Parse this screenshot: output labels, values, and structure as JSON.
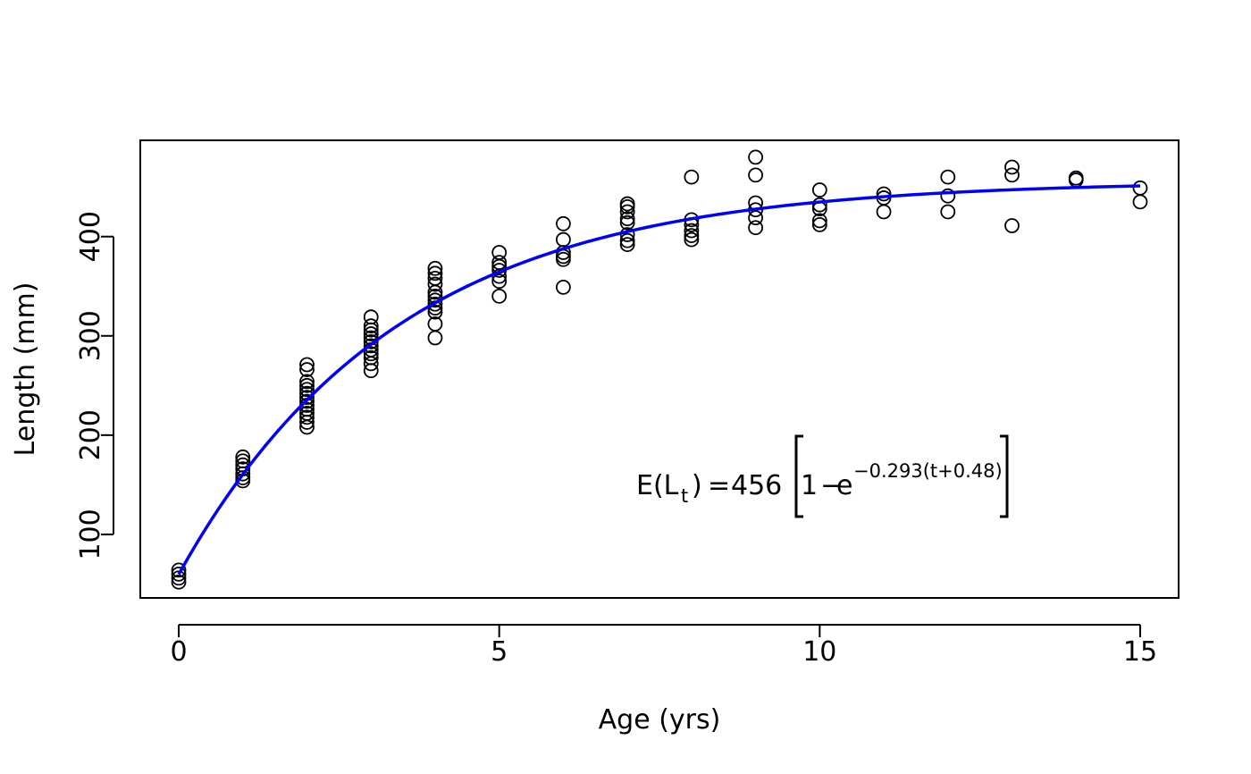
{
  "chart_data": {
    "type": "scatter",
    "title": "",
    "xlabel": "Age (yrs)",
    "ylabel": "Length (mm)",
    "xlim": [
      -0.6,
      15.6
    ],
    "ylim": [
      36,
      497
    ],
    "x_ticks": [
      0,
      5,
      10,
      15
    ],
    "y_ticks": [
      100,
      200,
      300,
      400
    ],
    "grid": false,
    "points_color": "#000000",
    "curve_color": "#0000ff",
    "points": [
      [
        0,
        52
      ],
      [
        0,
        56
      ],
      [
        0,
        60
      ],
      [
        0,
        64
      ],
      [
        1,
        154
      ],
      [
        1,
        157
      ],
      [
        1,
        161
      ],
      [
        1,
        166
      ],
      [
        1,
        170
      ],
      [
        1,
        174
      ],
      [
        1,
        178
      ],
      [
        2,
        208
      ],
      [
        2,
        213
      ],
      [
        2,
        218
      ],
      [
        2,
        222
      ],
      [
        2,
        226
      ],
      [
        2,
        230
      ],
      [
        2,
        234
      ],
      [
        2,
        238
      ],
      [
        2,
        242
      ],
      [
        2,
        246
      ],
      [
        2,
        250
      ],
      [
        2,
        254
      ],
      [
        2,
        266
      ],
      [
        2,
        271
      ],
      [
        3,
        265
      ],
      [
        3,
        272
      ],
      [
        3,
        278
      ],
      [
        3,
        282
      ],
      [
        3,
        286
      ],
      [
        3,
        290
      ],
      [
        3,
        294
      ],
      [
        3,
        298
      ],
      [
        3,
        302
      ],
      [
        3,
        306
      ],
      [
        3,
        310
      ],
      [
        3,
        319
      ],
      [
        4,
        298
      ],
      [
        4,
        312
      ],
      [
        4,
        324
      ],
      [
        4,
        328
      ],
      [
        4,
        332
      ],
      [
        4,
        336
      ],
      [
        4,
        340
      ],
      [
        4,
        344
      ],
      [
        4,
        352
      ],
      [
        4,
        358
      ],
      [
        4,
        363
      ],
      [
        4,
        368
      ],
      [
        5,
        340
      ],
      [
        5,
        355
      ],
      [
        5,
        360
      ],
      [
        5,
        366
      ],
      [
        5,
        370
      ],
      [
        5,
        374
      ],
      [
        5,
        384
      ],
      [
        6,
        349
      ],
      [
        6,
        377
      ],
      [
        6,
        380
      ],
      [
        6,
        384
      ],
      [
        6,
        397
      ],
      [
        6,
        413
      ],
      [
        7,
        392
      ],
      [
        7,
        396
      ],
      [
        7,
        402
      ],
      [
        7,
        414
      ],
      [
        7,
        418
      ],
      [
        7,
        425
      ],
      [
        7,
        430
      ],
      [
        7,
        433
      ],
      [
        8,
        397
      ],
      [
        8,
        401
      ],
      [
        8,
        406
      ],
      [
        8,
        412
      ],
      [
        8,
        417
      ],
      [
        8,
        460
      ],
      [
        9,
        409
      ],
      [
        9,
        419
      ],
      [
        9,
        427
      ],
      [
        9,
        434
      ],
      [
        9,
        462
      ],
      [
        9,
        480
      ],
      [
        10,
        412
      ],
      [
        10,
        416
      ],
      [
        10,
        428
      ],
      [
        10,
        432
      ],
      [
        10,
        447
      ],
      [
        11,
        425
      ],
      [
        11,
        439
      ],
      [
        11,
        443
      ],
      [
        12,
        425
      ],
      [
        12,
        441
      ],
      [
        12,
        460
      ],
      [
        13,
        411
      ],
      [
        13,
        462
      ],
      [
        13,
        470
      ],
      [
        14,
        457
      ],
      [
        14,
        459
      ],
      [
        15,
        435
      ],
      [
        15,
        449
      ]
    ],
    "fit": {
      "Linf": 456,
      "K": 0.293,
      "t0": -0.48,
      "x_range": [
        0,
        15
      ]
    },
    "equation": {
      "lhs_E": "E(L",
      "lhs_sub": "t",
      "lhs_close": ")",
      "equals": "=",
      "coef": "456",
      "one": "1",
      "minus": "−",
      "e": "e",
      "exponent": "−0.293(t+0.48)"
    }
  }
}
